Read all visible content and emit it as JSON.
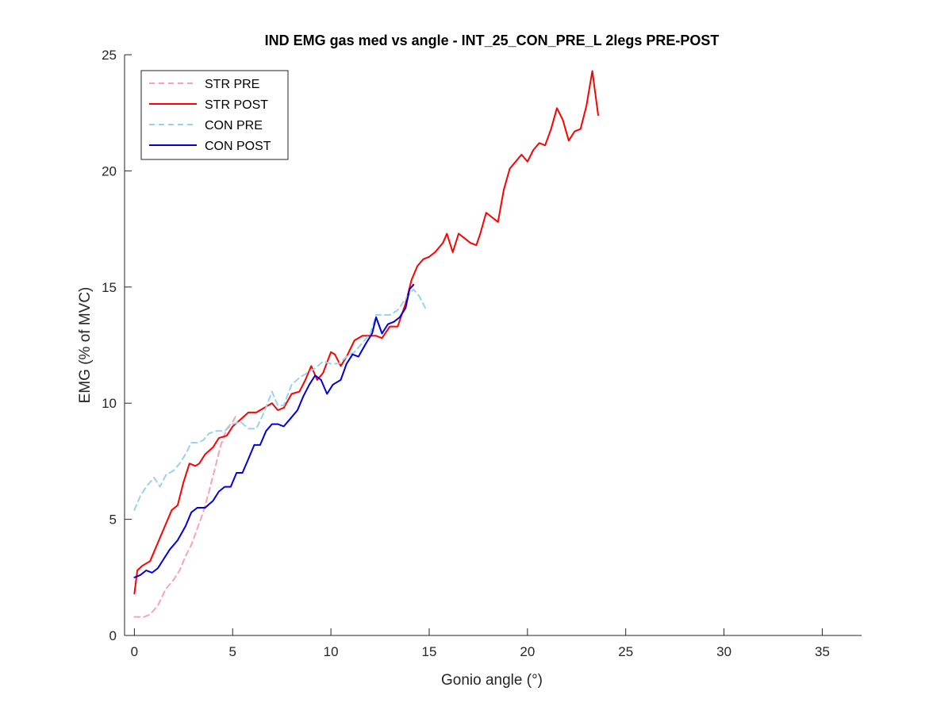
{
  "chart_data": {
    "type": "line",
    "title": "IND EMG gas med vs angle - INT_25_CON_PRE_L 2legs PRE-POST",
    "xlabel": "Gonio angle (°)",
    "ylabel": "EMG (% of MVC)",
    "xlim": [
      -0.5,
      37
    ],
    "ylim": [
      0,
      25
    ],
    "xticks": [
      0,
      5,
      10,
      15,
      20,
      25,
      30,
      35
    ],
    "yticks": [
      0,
      5,
      10,
      15,
      20,
      25
    ],
    "xtick_labels": [
      "0",
      "5",
      "10",
      "15",
      "20",
      "25",
      "30",
      "35"
    ],
    "ytick_labels": [
      "0",
      "5",
      "10",
      "15",
      "20",
      "25"
    ],
    "grid": false,
    "legend_position": "top-left",
    "series": [
      {
        "name": "STR PRE",
        "color": "#f7a0c0",
        "dash": true,
        "points": [
          [
            0,
            0.8
          ],
          [
            0.5,
            0.8
          ],
          [
            0.8,
            0.9
          ],
          [
            1.2,
            1.3
          ],
          [
            1.6,
            2.0
          ],
          [
            2.0,
            2.4
          ],
          [
            2.3,
            2.8
          ],
          [
            2.6,
            3.4
          ],
          [
            2.9,
            3.9
          ],
          [
            3.2,
            4.6
          ],
          [
            3.5,
            5.3
          ],
          [
            3.8,
            6.2
          ],
          [
            4.1,
            7.2
          ],
          [
            4.4,
            8.2
          ],
          [
            4.7,
            8.9
          ],
          [
            5.0,
            9.2
          ],
          [
            5.2,
            9.5
          ]
        ]
      },
      {
        "name": "STR POST",
        "color": "#ff0000",
        "dash": false,
        "points": [
          [
            0,
            1.8
          ],
          [
            0.15,
            2.8
          ],
          [
            0.4,
            3.0
          ],
          [
            0.8,
            3.2
          ],
          [
            1.2,
            4.0
          ],
          [
            1.6,
            4.8
          ],
          [
            1.9,
            5.4
          ],
          [
            2.2,
            5.6
          ],
          [
            2.5,
            6.6
          ],
          [
            2.8,
            7.4
          ],
          [
            3.1,
            7.3
          ],
          [
            3.3,
            7.4
          ],
          [
            3.6,
            7.8
          ],
          [
            4.0,
            8.1
          ],
          [
            4.3,
            8.5
          ],
          [
            4.7,
            8.6
          ],
          [
            5.0,
            9.0
          ],
          [
            5.4,
            9.3
          ],
          [
            5.8,
            9.6
          ],
          [
            6.2,
            9.6
          ],
          [
            6.6,
            9.8
          ],
          [
            7.0,
            10.0
          ],
          [
            7.3,
            9.7
          ],
          [
            7.6,
            9.8
          ],
          [
            8.0,
            10.4
          ],
          [
            8.4,
            10.5
          ],
          [
            8.7,
            11.0
          ],
          [
            9.0,
            11.6
          ],
          [
            9.3,
            11.0
          ],
          [
            9.6,
            11.3
          ],
          [
            10.0,
            12.2
          ],
          [
            10.2,
            12.1
          ],
          [
            10.5,
            11.6
          ],
          [
            10.8,
            12.0
          ],
          [
            11.2,
            12.7
          ],
          [
            11.6,
            12.9
          ],
          [
            12.0,
            12.9
          ],
          [
            12.3,
            12.9
          ],
          [
            12.6,
            12.8
          ],
          [
            13.0,
            13.3
          ],
          [
            13.4,
            13.3
          ],
          [
            13.8,
            14.3
          ],
          [
            14.1,
            15.3
          ],
          [
            14.4,
            15.9
          ],
          [
            14.7,
            16.2
          ],
          [
            15.0,
            16.3
          ],
          [
            15.3,
            16.5
          ],
          [
            15.7,
            16.9
          ],
          [
            15.9,
            17.3
          ],
          [
            16.2,
            16.5
          ],
          [
            16.5,
            17.3
          ],
          [
            16.8,
            17.1
          ],
          [
            17.1,
            16.9
          ],
          [
            17.4,
            16.8
          ],
          [
            17.6,
            17.3
          ],
          [
            17.9,
            18.2
          ],
          [
            18.2,
            18.0
          ],
          [
            18.5,
            17.8
          ],
          [
            18.8,
            19.2
          ],
          [
            19.1,
            20.1
          ],
          [
            19.4,
            20.4
          ],
          [
            19.7,
            20.7
          ],
          [
            20.0,
            20.4
          ],
          [
            20.3,
            20.9
          ],
          [
            20.6,
            21.2
          ],
          [
            20.9,
            21.1
          ],
          [
            21.2,
            21.8
          ],
          [
            21.5,
            22.7
          ],
          [
            21.8,
            22.2
          ],
          [
            22.1,
            21.3
          ],
          [
            22.4,
            21.7
          ],
          [
            22.7,
            21.8
          ],
          [
            23.0,
            22.8
          ],
          [
            23.3,
            24.3
          ],
          [
            23.6,
            22.4
          ]
        ]
      },
      {
        "name": "CON PRE",
        "color": "#9ad0f2",
        "dash": true,
        "points": [
          [
            0,
            5.4
          ],
          [
            0.3,
            6.0
          ],
          [
            0.6,
            6.4
          ],
          [
            1.0,
            6.8
          ],
          [
            1.3,
            6.4
          ],
          [
            1.6,
            6.9
          ],
          [
            2.0,
            7.1
          ],
          [
            2.3,
            7.4
          ],
          [
            2.6,
            7.8
          ],
          [
            2.9,
            8.3
          ],
          [
            3.2,
            8.3
          ],
          [
            3.5,
            8.4
          ],
          [
            3.8,
            8.7
          ],
          [
            4.2,
            8.8
          ],
          [
            4.6,
            8.8
          ],
          [
            5.0,
            9.1
          ],
          [
            5.4,
            9.2
          ],
          [
            5.8,
            8.9
          ],
          [
            6.2,
            8.9
          ],
          [
            6.6,
            9.6
          ],
          [
            7.0,
            10.5
          ],
          [
            7.3,
            9.9
          ],
          [
            7.6,
            9.9
          ],
          [
            8.0,
            10.8
          ],
          [
            8.4,
            11.1
          ],
          [
            8.8,
            11.3
          ],
          [
            9.2,
            11.5
          ],
          [
            9.6,
            11.8
          ],
          [
            10.0,
            11.7
          ],
          [
            10.4,
            11.7
          ],
          [
            10.8,
            12.0
          ],
          [
            11.2,
            12.2
          ],
          [
            11.6,
            12.6
          ],
          [
            12.0,
            13.0
          ],
          [
            12.3,
            13.8
          ],
          [
            12.6,
            13.8
          ],
          [
            13.0,
            13.8
          ],
          [
            13.4,
            14.0
          ],
          [
            13.8,
            14.5
          ],
          [
            14.2,
            14.9
          ],
          [
            14.5,
            14.6
          ],
          [
            14.8,
            14.1
          ]
        ]
      },
      {
        "name": "CON POST",
        "color": "#0000dd",
        "dash": false,
        "points": [
          [
            0,
            2.5
          ],
          [
            0.3,
            2.6
          ],
          [
            0.6,
            2.8
          ],
          [
            0.9,
            2.7
          ],
          [
            1.2,
            2.9
          ],
          [
            1.5,
            3.3
          ],
          [
            1.8,
            3.7
          ],
          [
            2.2,
            4.1
          ],
          [
            2.6,
            4.7
          ],
          [
            2.9,
            5.3
          ],
          [
            3.2,
            5.5
          ],
          [
            3.6,
            5.5
          ],
          [
            4.0,
            5.8
          ],
          [
            4.3,
            6.2
          ],
          [
            4.6,
            6.4
          ],
          [
            4.9,
            6.4
          ],
          [
            5.2,
            7.0
          ],
          [
            5.5,
            7.0
          ],
          [
            5.8,
            7.6
          ],
          [
            6.1,
            8.2
          ],
          [
            6.4,
            8.2
          ],
          [
            6.7,
            8.8
          ],
          [
            7.0,
            9.1
          ],
          [
            7.3,
            9.1
          ],
          [
            7.6,
            9.0
          ],
          [
            8.0,
            9.4
          ],
          [
            8.3,
            9.7
          ],
          [
            8.6,
            10.3
          ],
          [
            8.9,
            10.8
          ],
          [
            9.2,
            11.2
          ],
          [
            9.5,
            11.0
          ],
          [
            9.8,
            10.4
          ],
          [
            10.1,
            10.8
          ],
          [
            10.5,
            11.0
          ],
          [
            10.8,
            11.7
          ],
          [
            11.1,
            12.1
          ],
          [
            11.4,
            12.0
          ],
          [
            11.8,
            12.6
          ],
          [
            12.1,
            13.0
          ],
          [
            12.3,
            13.7
          ],
          [
            12.6,
            13.0
          ],
          [
            12.9,
            13.4
          ],
          [
            13.2,
            13.5
          ],
          [
            13.5,
            13.7
          ],
          [
            13.8,
            14.1
          ],
          [
            14.0,
            14.9
          ],
          [
            14.2,
            15.1
          ]
        ]
      }
    ]
  }
}
